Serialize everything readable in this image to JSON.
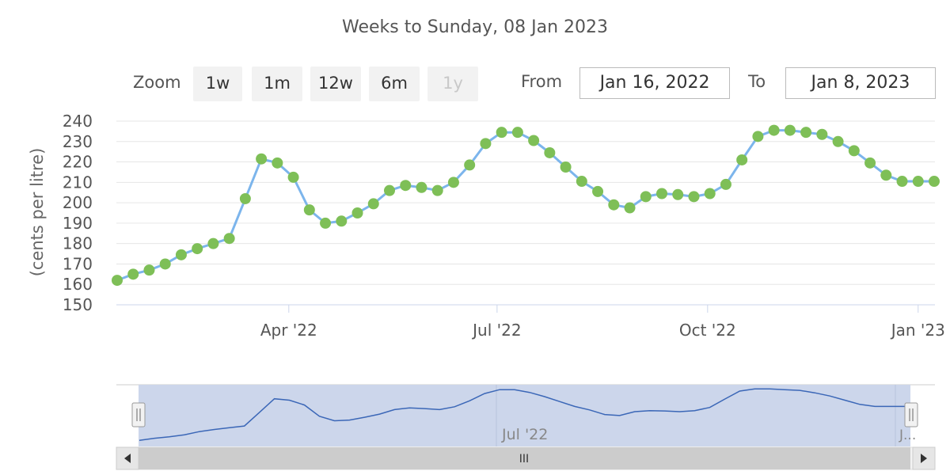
{
  "subtitle": "Weeks to Sunday, 08 Jan 2023",
  "rangeSelector": {
    "zoom_label": "Zoom",
    "buttons": [
      "1w",
      "1m",
      "12w",
      "6m",
      "1y"
    ],
    "disabled": "1y",
    "from_label": "From",
    "from_value": "Jan 16, 2022",
    "to_label": "To",
    "to_value": "Jan 8, 2023"
  },
  "navigator": {
    "tick_labels": [
      "Jul '22",
      "J..."
    ],
    "scroll_grip": "III"
  },
  "colors": {
    "line": "#7cb5ec",
    "marker": "#7ebf57",
    "navigator_fill": "#ccd6eb",
    "navigator_line": "#3b67b7"
  },
  "chart_data": {
    "type": "line",
    "ylabel": "(cents per litre)",
    "ylim": [
      150,
      240
    ],
    "yticks": [
      150,
      160,
      170,
      180,
      190,
      200,
      210,
      220,
      230,
      240
    ],
    "xrange": [
      "2022-01-16",
      "2023-01-08"
    ],
    "xticks": [
      {
        "date": "2022-04-01",
        "label": "Apr '22"
      },
      {
        "date": "2022-07-01",
        "label": "Jul '22"
      },
      {
        "date": "2022-10-01",
        "label": "Oct '22"
      },
      {
        "date": "2023-01-01",
        "label": "Jan '23"
      }
    ],
    "grid": true,
    "legend": "none",
    "x": [
      "2022-01-16",
      "2022-01-23",
      "2022-01-30",
      "2022-02-06",
      "2022-02-13",
      "2022-02-20",
      "2022-02-27",
      "2022-03-06",
      "2022-03-13",
      "2022-03-20",
      "2022-03-27",
      "2022-04-03",
      "2022-04-10",
      "2022-04-17",
      "2022-04-24",
      "2022-05-01",
      "2022-05-08",
      "2022-05-15",
      "2022-05-22",
      "2022-05-29",
      "2022-06-05",
      "2022-06-12",
      "2022-06-19",
      "2022-06-26",
      "2022-07-03",
      "2022-07-10",
      "2022-07-17",
      "2022-07-24",
      "2022-07-31",
      "2022-08-07",
      "2022-08-14",
      "2022-08-21",
      "2022-08-28",
      "2022-09-04",
      "2022-09-11",
      "2022-09-18",
      "2022-09-25",
      "2022-10-02",
      "2022-10-09",
      "2022-10-16",
      "2022-10-23",
      "2022-10-30",
      "2022-11-06",
      "2022-11-13",
      "2022-11-20",
      "2022-11-27",
      "2022-12-04",
      "2022-12-11",
      "2022-12-18",
      "2022-12-25",
      "2023-01-01",
      "2023-01-08"
    ],
    "values": [
      162,
      165,
      167,
      170,
      174.5,
      177.5,
      180,
      182.5,
      202,
      221.5,
      219.5,
      212.5,
      196.5,
      190,
      191,
      195,
      199.5,
      206,
      208.5,
      207.5,
      206,
      210,
      218.5,
      229,
      234.5,
      234.5,
      230.5,
      224.5,
      217.5,
      210.5,
      205.5,
      199,
      197.5,
      203,
      204.5,
      204,
      203,
      204.5,
      209,
      221,
      232.5,
      235.5,
      235.5,
      234.5,
      233.5,
      230,
      225.5,
      219.5,
      213.5,
      210.5,
      210.5,
      210.5
    ]
  }
}
